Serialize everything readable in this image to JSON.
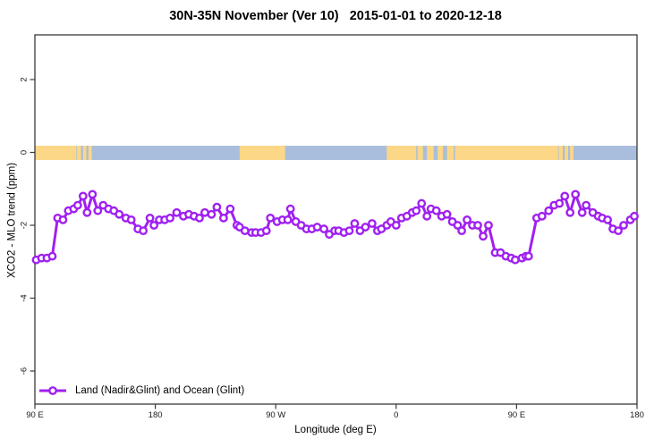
{
  "title": "30N-35N November (Ver 10)   2015-01-01 to 2020-12-18",
  "legend": {
    "label": "Land (Nadir&Glint) and Ocean (Glint)"
  },
  "colors": {
    "series": "#A020F0",
    "marker_fill": "#FFFFFF",
    "land": "#FBD787",
    "ocean": "#A9BEDC",
    "axis": "#3A3A3A",
    "tick_text": "#1A1A1A"
  },
  "chart_data": {
    "type": "line",
    "title": "30N-35N November (Ver 10)   2015-01-01 to 2020-12-18",
    "xlabel": "Longitude (deg E)",
    "ylabel": "XCO2 - MLO trend (ppm)",
    "x_axis": {
      "note": "x = degrees along axis measured eastward from left edge at 90E; axis wraps 90E -> 180 -> 90W -> 0 -> 90E -> 180 (450 deg total)",
      "span_deg": 450,
      "ticks": [
        {
          "pos": 0,
          "label": "90 E"
        },
        {
          "pos": 90,
          "label": "180"
        },
        {
          "pos": 180,
          "label": "90 W"
        },
        {
          "pos": 270,
          "label": "0"
        },
        {
          "pos": 360,
          "label": "90 E"
        },
        {
          "pos": 450,
          "label": "180"
        }
      ]
    },
    "y_axis": {
      "ticks": [
        2,
        0,
        -2,
        -4,
        -6
      ],
      "tick_labels": [
        "2",
        "0",
        "-2",
        "-4",
        "-6"
      ],
      "range": [
        -6.9,
        3.3
      ],
      "grid": false
    },
    "legend_position": "bottom-left",
    "series": [
      {
        "name": "Land (Nadir&Glint) and Ocean (Glint)",
        "x": [
          1,
          5,
          9,
          13,
          17,
          21,
          25,
          29,
          32,
          36,
          39,
          43,
          47,
          51,
          55,
          59,
          63,
          68,
          72,
          77,
          81,
          86,
          89,
          93,
          97,
          101,
          106,
          111,
          115,
          119,
          123,
          127,
          132,
          136,
          141,
          146,
          151,
          153,
          157,
          162,
          165,
          169,
          173,
          176,
          181,
          185,
          189,
          191,
          195,
          199,
          203,
          207,
          211,
          216,
          220,
          224,
          227,
          231,
          235,
          239,
          243,
          247,
          252,
          256,
          259,
          263,
          266,
          270,
          274,
          278,
          282,
          285,
          289,
          293,
          296,
          300,
          304,
          308,
          312,
          316,
          319,
          323,
          327,
          331,
          335,
          339,
          344,
          348,
          352,
          356,
          359,
          364,
          367,
          369,
          375,
          379,
          384,
          388,
          392,
          396,
          400,
          404,
          409,
          412,
          417,
          421,
          424,
          428,
          432,
          436,
          440,
          445,
          448
        ],
        "y": [
          -2.95,
          -2.9,
          -2.9,
          -2.85,
          -1.8,
          -1.85,
          -1.6,
          -1.55,
          -1.45,
          -1.2,
          -1.65,
          -1.15,
          -1.6,
          -1.45,
          -1.55,
          -1.6,
          -1.7,
          -1.8,
          -1.85,
          -2.1,
          -2.15,
          -1.8,
          -2.0,
          -1.85,
          -1.85,
          -1.8,
          -1.65,
          -1.75,
          -1.7,
          -1.75,
          -1.8,
          -1.65,
          -1.7,
          -1.5,
          -1.8,
          -1.55,
          -2.0,
          -2.05,
          -2.15,
          -2.2,
          -2.2,
          -2.2,
          -2.15,
          -1.8,
          -1.9,
          -1.85,
          -1.85,
          -1.55,
          -1.9,
          -2.0,
          -2.1,
          -2.1,
          -2.05,
          -2.1,
          -2.25,
          -2.15,
          -2.15,
          -2.2,
          -2.15,
          -1.95,
          -2.15,
          -2.05,
          -1.95,
          -2.15,
          -2.1,
          -2.0,
          -1.9,
          -2.0,
          -1.8,
          -1.75,
          -1.65,
          -1.6,
          -1.4,
          -1.75,
          -1.55,
          -1.6,
          -1.75,
          -1.7,
          -1.9,
          -2.0,
          -2.15,
          -1.85,
          -2.0,
          -2.0,
          -2.3,
          -2.0,
          -2.75,
          -2.75,
          -2.85,
          -2.9,
          -2.95,
          -2.9,
          -2.85,
          -2.85,
          -1.8,
          -1.75,
          -1.6,
          -1.45,
          -1.4,
          -1.2,
          -1.65,
          -1.15,
          -1.65,
          -1.45,
          -1.65,
          -1.75,
          -1.8,
          -1.85,
          -2.1,
          -2.15,
          -2.0,
          -1.85,
          -1.75
        ]
      }
    ],
    "map_strip": {
      "note": "world-map band for 30N-35N drawn along y=0; land over ocean",
      "y_center_value": 0,
      "ocean_deg": [
        [
          0,
          450
        ]
      ],
      "land_deg": [
        [
          0,
          31
        ],
        [
          31.5,
          34.5
        ],
        [
          36,
          38.5
        ],
        [
          40,
          42.5
        ],
        [
          153,
          187
        ],
        [
          263,
          285
        ],
        [
          286,
          290
        ],
        [
          293,
          298
        ],
        [
          301,
          305
        ],
        [
          308,
          313
        ],
        [
          314,
          391
        ],
        [
          391.5,
          394.5
        ],
        [
          396,
          398.5
        ],
        [
          400,
          402.5
        ]
      ]
    }
  }
}
